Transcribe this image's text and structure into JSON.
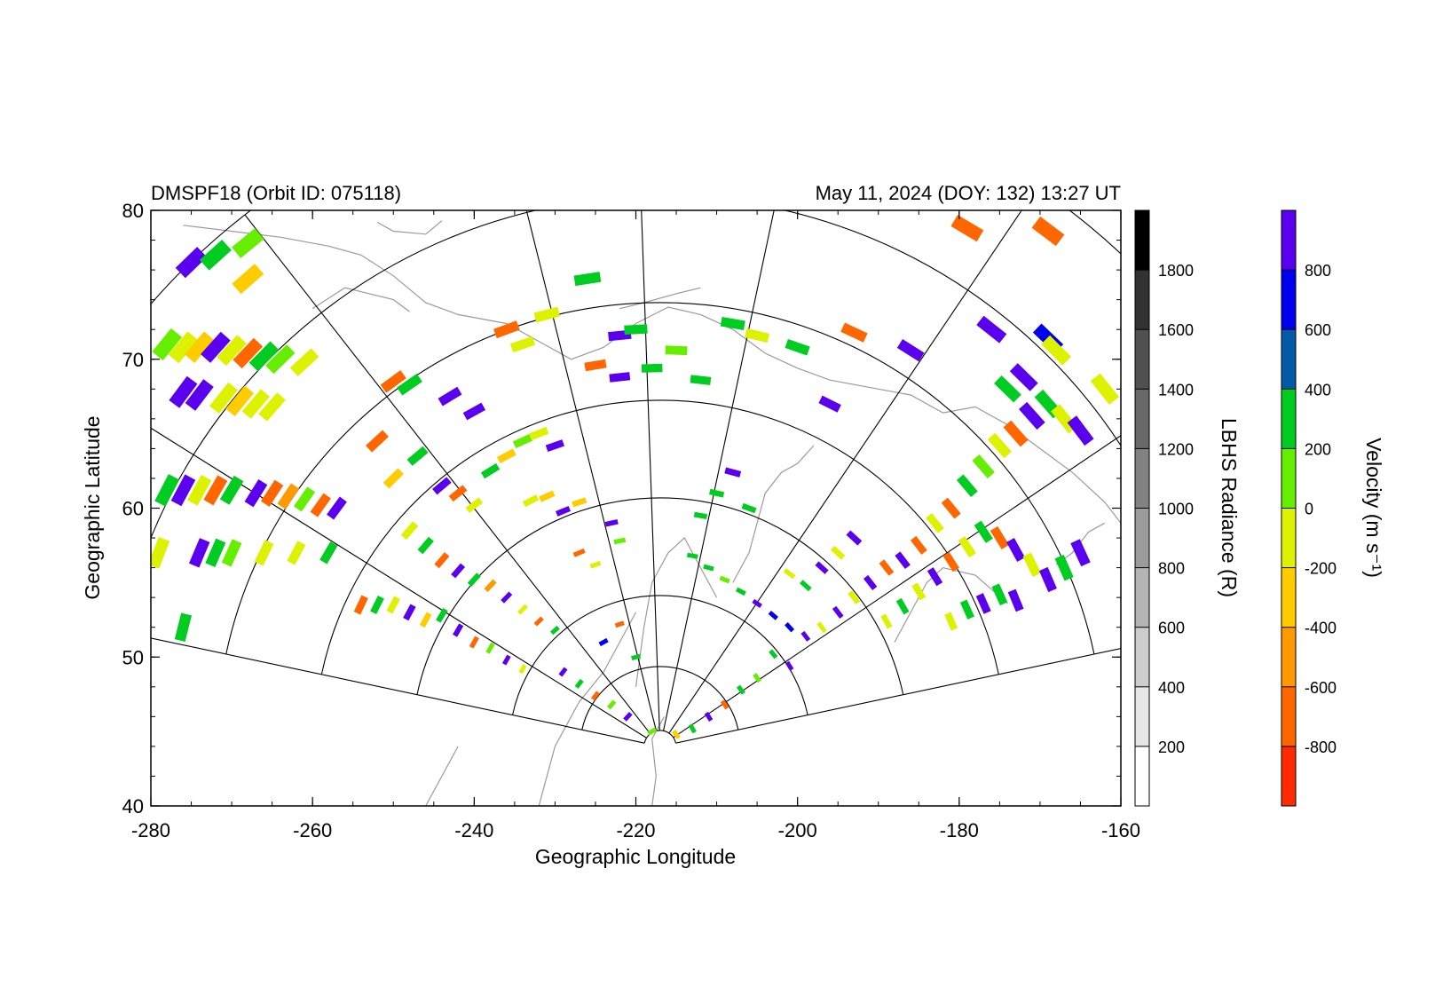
{
  "header": {
    "title_left": "DMSPF18 (Orbit ID: 075118)",
    "title_right": "May 11, 2024 (DOY: 132) 13:27 UT"
  },
  "chart_data": {
    "type": "scatter",
    "subtype": "radar velocity fan plot over radiance map",
    "xlabel": "Geographic Longitude",
    "ylabel": "Geographic Latitude",
    "xlim": [
      -280,
      -160
    ],
    "ylim": [
      40,
      80
    ],
    "xticks": [
      -280,
      -260,
      -240,
      -220,
      -200,
      -180,
      -160
    ],
    "yticks": [
      40,
      50,
      60,
      70,
      80
    ],
    "grid": "radar range/beam fan outlines",
    "background_map": "coastlines (grey)",
    "fan_origin": {
      "lon": -217,
      "lat": 44
    },
    "colorbars": [
      {
        "title": "LBHS Radiance (R)",
        "position": "right",
        "tick_labels": [
          "200",
          "400",
          "600",
          "800",
          "1000",
          "1200",
          "1400",
          "1600",
          "1800"
        ],
        "colors": [
          "#ffffff",
          "#e6e6e6",
          "#cdcdcd",
          "#b4b4b4",
          "#9b9b9b",
          "#828282",
          "#696969",
          "#505050",
          "#323232",
          "#000000"
        ]
      },
      {
        "title": "Velocity (m s⁻¹)",
        "position": "far-right",
        "tick_labels": [
          "-800",
          "-600",
          "-400",
          "-200",
          "0",
          "200",
          "400",
          "600",
          "800"
        ],
        "colors": [
          "#ff2a00",
          "#ff6600",
          "#ff9900",
          "#ffcc00",
          "#ddf200",
          "#66ee00",
          "#00cc22",
          "#005aa8",
          "#0000ee",
          "#5a00ee"
        ]
      }
    ],
    "velocity_cells": [
      {
        "lon": -275,
        "lat": 76.5,
        "v": 950
      },
      {
        "lon": -272,
        "lat": 77.0,
        "v": 350
      },
      {
        "lon": -268,
        "lat": 77.8,
        "v": 150
      },
      {
        "lon": -268,
        "lat": 75.4,
        "v": -300
      },
      {
        "lon": -278,
        "lat": 71.0,
        "v": 100
      },
      {
        "lon": -276,
        "lat": 70.8,
        "v": -100
      },
      {
        "lon": -274,
        "lat": 70.8,
        "v": -350
      },
      {
        "lon": -272,
        "lat": 70.8,
        "v": 900
      },
      {
        "lon": -270,
        "lat": 70.6,
        "v": -150
      },
      {
        "lon": -268,
        "lat": 70.4,
        "v": -800
      },
      {
        "lon": -266,
        "lat": 70.2,
        "v": 300
      },
      {
        "lon": -264,
        "lat": 70.0,
        "v": 100
      },
      {
        "lon": -261,
        "lat": 69.8,
        "v": -50
      },
      {
        "lon": -250,
        "lat": 68.5,
        "v": -800
      },
      {
        "lon": -248,
        "lat": 68.3,
        "v": 300
      },
      {
        "lon": -243,
        "lat": 67.5,
        "v": 900
      },
      {
        "lon": -240,
        "lat": 66.5,
        "v": 950
      },
      {
        "lon": -236,
        "lat": 72.0,
        "v": -800
      },
      {
        "lon": -234,
        "lat": 71.0,
        "v": -200
      },
      {
        "lon": -231,
        "lat": 73.0,
        "v": -100
      },
      {
        "lon": -226,
        "lat": 75.4,
        "v": 300
      },
      {
        "lon": -222,
        "lat": 71.6,
        "v": 950
      },
      {
        "lon": -220,
        "lat": 72.0,
        "v": 200
      },
      {
        "lon": -225,
        "lat": 69.6,
        "v": -800
      },
      {
        "lon": -222,
        "lat": 68.8,
        "v": 900
      },
      {
        "lon": -218,
        "lat": 69.4,
        "v": 350
      },
      {
        "lon": -215,
        "lat": 70.6,
        "v": 150
      },
      {
        "lon": -212,
        "lat": 68.6,
        "v": 300
      },
      {
        "lon": -276,
        "lat": 67.8,
        "v": 850
      },
      {
        "lon": -274,
        "lat": 67.6,
        "v": 900
      },
      {
        "lon": -271,
        "lat": 67.4,
        "v": -100
      },
      {
        "lon": -269,
        "lat": 67.2,
        "v": -300
      },
      {
        "lon": -267,
        "lat": 67.0,
        "v": -200
      },
      {
        "lon": -265,
        "lat": 66.8,
        "v": -100
      },
      {
        "lon": -278,
        "lat": 61.2,
        "v": 300
      },
      {
        "lon": -276,
        "lat": 61.2,
        "v": 900
      },
      {
        "lon": -274,
        "lat": 61.2,
        "v": -200
      },
      {
        "lon": -272,
        "lat": 61.2,
        "v": -800
      },
      {
        "lon": -270,
        "lat": 61.2,
        "v": 300
      },
      {
        "lon": -267,
        "lat": 61.0,
        "v": 900
      },
      {
        "lon": -265,
        "lat": 61.0,
        "v": -800
      },
      {
        "lon": -263,
        "lat": 60.8,
        "v": -600
      },
      {
        "lon": -261,
        "lat": 60.6,
        "v": 100
      },
      {
        "lon": -259,
        "lat": 60.2,
        "v": -800
      },
      {
        "lon": -257,
        "lat": 60.0,
        "v": 900
      },
      {
        "lon": -279,
        "lat": 57.0,
        "v": -100
      },
      {
        "lon": -274,
        "lat": 57.0,
        "v": 900
      },
      {
        "lon": -272,
        "lat": 57.0,
        "v": 300
      },
      {
        "lon": -270,
        "lat": 57.0,
        "v": 100
      },
      {
        "lon": -266,
        "lat": 57.0,
        "v": -100
      },
      {
        "lon": -262,
        "lat": 57.0,
        "v": -100
      },
      {
        "lon": -258,
        "lat": 57.0,
        "v": 300
      },
      {
        "lon": -276,
        "lat": 52.0,
        "v": 200
      },
      {
        "lon": -252,
        "lat": 64.5,
        "v": -800
      },
      {
        "lon": -250,
        "lat": 62.0,
        "v": -300
      },
      {
        "lon": -247,
        "lat": 63.5,
        "v": 200
      },
      {
        "lon": -244,
        "lat": 61.5,
        "v": 900
      },
      {
        "lon": -242,
        "lat": 61.0,
        "v": -800
      },
      {
        "lon": -240,
        "lat": 60.2,
        "v": -100
      },
      {
        "lon": -238,
        "lat": 62.5,
        "v": 300
      },
      {
        "lon": -236,
        "lat": 63.5,
        "v": -400
      },
      {
        "lon": -234,
        "lat": 64.5,
        "v": 150
      },
      {
        "lon": -232,
        "lat": 65.0,
        "v": -100
      },
      {
        "lon": -230,
        "lat": 64.2,
        "v": 950
      },
      {
        "lon": -233,
        "lat": 60.5,
        "v": -50
      },
      {
        "lon": -231,
        "lat": 60.8,
        "v": -400
      },
      {
        "lon": -229,
        "lat": 59.8,
        "v": 900
      },
      {
        "lon": -227,
        "lat": 60.4,
        "v": -300
      },
      {
        "lon": -223,
        "lat": 59.0,
        "v": 950
      },
      {
        "lon": -222,
        "lat": 57.8,
        "v": 100
      },
      {
        "lon": -227,
        "lat": 57.0,
        "v": -800
      },
      {
        "lon": -225,
        "lat": 56.2,
        "v": -200
      },
      {
        "lon": -248,
        "lat": 58.5,
        "v": -100
      },
      {
        "lon": -246,
        "lat": 57.5,
        "v": 300
      },
      {
        "lon": -244,
        "lat": 56.5,
        "v": -800
      },
      {
        "lon": -242,
        "lat": 55.8,
        "v": 900
      },
      {
        "lon": -240,
        "lat": 55.2,
        "v": 200
      },
      {
        "lon": -238,
        "lat": 54.8,
        "v": -600
      },
      {
        "lon": -236,
        "lat": 54.0,
        "v": 950
      },
      {
        "lon": -234,
        "lat": 53.2,
        "v": -100
      },
      {
        "lon": -232,
        "lat": 52.4,
        "v": -800
      },
      {
        "lon": -230,
        "lat": 51.8,
        "v": 300
      },
      {
        "lon": -254,
        "lat": 53.5,
        "v": -800
      },
      {
        "lon": -252,
        "lat": 53.5,
        "v": 200
      },
      {
        "lon": -250,
        "lat": 53.5,
        "v": -100
      },
      {
        "lon": -248,
        "lat": 53.0,
        "v": 900
      },
      {
        "lon": -246,
        "lat": 52.5,
        "v": -300
      },
      {
        "lon": -244,
        "lat": 52.8,
        "v": 300
      },
      {
        "lon": -242,
        "lat": 51.8,
        "v": 950
      },
      {
        "lon": -240,
        "lat": 51.0,
        "v": -800
      },
      {
        "lon": -238,
        "lat": 50.6,
        "v": 100
      },
      {
        "lon": -236,
        "lat": 49.8,
        "v": 900
      },
      {
        "lon": -234,
        "lat": 49.2,
        "v": -200
      },
      {
        "lon": -229,
        "lat": 49.0,
        "v": 950
      },
      {
        "lon": -227,
        "lat": 48.2,
        "v": 300
      },
      {
        "lon": -225,
        "lat": 47.4,
        "v": -800
      },
      {
        "lon": -223,
        "lat": 46.8,
        "v": 150
      },
      {
        "lon": -221,
        "lat": 46.0,
        "v": 900
      },
      {
        "lon": -224,
        "lat": 51.0,
        "v": 600
      },
      {
        "lon": -222,
        "lat": 52.2,
        "v": -800
      },
      {
        "lon": -220,
        "lat": 50.0,
        "v": 300
      },
      {
        "lon": -212,
        "lat": 59.5,
        "v": 300
      },
      {
        "lon": -210,
        "lat": 61.0,
        "v": 200
      },
      {
        "lon": -208,
        "lat": 62.4,
        "v": 950
      },
      {
        "lon": -206,
        "lat": 60.0,
        "v": 300
      },
      {
        "lon": -213,
        "lat": 56.8,
        "v": 200
      },
      {
        "lon": -211,
        "lat": 56.0,
        "v": 300
      },
      {
        "lon": -209,
        "lat": 55.2,
        "v": 100
      },
      {
        "lon": -207,
        "lat": 54.4,
        "v": 350
      },
      {
        "lon": -205,
        "lat": 53.6,
        "v": 900
      },
      {
        "lon": -203,
        "lat": 52.8,
        "v": 650
      },
      {
        "lon": -201,
        "lat": 52.0,
        "v": 700
      },
      {
        "lon": -199,
        "lat": 51.4,
        "v": 950
      },
      {
        "lon": -197,
        "lat": 52.0,
        "v": -100
      },
      {
        "lon": -195,
        "lat": 53.0,
        "v": 900
      },
      {
        "lon": -193,
        "lat": 54.0,
        "v": -100
      },
      {
        "lon": -191,
        "lat": 55.0,
        "v": 950
      },
      {
        "lon": -189,
        "lat": 56.0,
        "v": -800
      },
      {
        "lon": -187,
        "lat": 56.5,
        "v": 900
      },
      {
        "lon": -185,
        "lat": 57.5,
        "v": -800
      },
      {
        "lon": -183,
        "lat": 59.0,
        "v": -100
      },
      {
        "lon": -181,
        "lat": 60.0,
        "v": -800
      },
      {
        "lon": -179,
        "lat": 61.5,
        "v": 300
      },
      {
        "lon": -177,
        "lat": 62.8,
        "v": 150
      },
      {
        "lon": -175,
        "lat": 64.2,
        "v": -200
      },
      {
        "lon": -173,
        "lat": 65.0,
        "v": -800
      },
      {
        "lon": -171,
        "lat": 66.2,
        "v": 950
      },
      {
        "lon": -169,
        "lat": 67.0,
        "v": 300
      },
      {
        "lon": -167,
        "lat": 66.0,
        "v": -200
      },
      {
        "lon": -165,
        "lat": 65.2,
        "v": 900
      },
      {
        "lon": -197,
        "lat": 56.0,
        "v": 900
      },
      {
        "lon": -195,
        "lat": 57.0,
        "v": -100
      },
      {
        "lon": -193,
        "lat": 58.0,
        "v": 950
      },
      {
        "lon": -199,
        "lat": 54.8,
        "v": 200
      },
      {
        "lon": -201,
        "lat": 55.6,
        "v": -150
      },
      {
        "lon": -189,
        "lat": 52.4,
        "v": -50
      },
      {
        "lon": -187,
        "lat": 53.4,
        "v": 300
      },
      {
        "lon": -185,
        "lat": 54.4,
        "v": -100
      },
      {
        "lon": -183,
        "lat": 55.4,
        "v": 900
      },
      {
        "lon": -181,
        "lat": 56.4,
        "v": -800
      },
      {
        "lon": -179,
        "lat": 57.4,
        "v": -100
      },
      {
        "lon": -177,
        "lat": 58.4,
        "v": 200
      },
      {
        "lon": -175,
        "lat": 58.0,
        "v": -800
      },
      {
        "lon": -173,
        "lat": 57.2,
        "v": 950
      },
      {
        "lon": -171,
        "lat": 56.2,
        "v": -100
      },
      {
        "lon": -169,
        "lat": 55.2,
        "v": 900
      },
      {
        "lon": -167,
        "lat": 56.0,
        "v": 300
      },
      {
        "lon": -165,
        "lat": 57.0,
        "v": 950
      },
      {
        "lon": -181,
        "lat": 52.4,
        "v": -100
      },
      {
        "lon": -179,
        "lat": 53.2,
        "v": 300
      },
      {
        "lon": -177,
        "lat": 53.6,
        "v": 900
      },
      {
        "lon": -175,
        "lat": 54.2,
        "v": 200
      },
      {
        "lon": -173,
        "lat": 53.8,
        "v": 950
      },
      {
        "lon": -203,
        "lat": 50.2,
        "v": 300
      },
      {
        "lon": -201,
        "lat": 49.4,
        "v": 900
      },
      {
        "lon": -205,
        "lat": 48.6,
        "v": 100
      },
      {
        "lon": -207,
        "lat": 47.8,
        "v": 200
      },
      {
        "lon": -209,
        "lat": 46.8,
        "v": -800
      },
      {
        "lon": -211,
        "lat": 46.0,
        "v": 900
      },
      {
        "lon": -213,
        "lat": 45.2,
        "v": 300
      },
      {
        "lon": -215,
        "lat": 44.8,
        "v": -300
      },
      {
        "lon": -218,
        "lat": 45.0,
        "v": 100
      },
      {
        "lon": -208,
        "lat": 72.4,
        "v": 250
      },
      {
        "lon": -205,
        "lat": 71.6,
        "v": -100
      },
      {
        "lon": -200,
        "lat": 70.8,
        "v": 200
      },
      {
        "lon": -193,
        "lat": 71.8,
        "v": -800
      },
      {
        "lon": -186,
        "lat": 70.6,
        "v": 900
      },
      {
        "lon": -176,
        "lat": 72.0,
        "v": 950
      },
      {
        "lon": -169,
        "lat": 71.4,
        "v": 600
      },
      {
        "lon": -168,
        "lat": 70.6,
        "v": -150
      },
      {
        "lon": -196,
        "lat": 67.0,
        "v": 900
      },
      {
        "lon": -179,
        "lat": 78.8,
        "v": -800
      },
      {
        "lon": -169,
        "lat": 78.6,
        "v": -800
      },
      {
        "lon": -174,
        "lat": 68.0,
        "v": 300
      },
      {
        "lon": -172,
        "lat": 68.8,
        "v": 950
      },
      {
        "lon": -162,
        "lat": 68.0,
        "v": -100
      }
    ]
  }
}
